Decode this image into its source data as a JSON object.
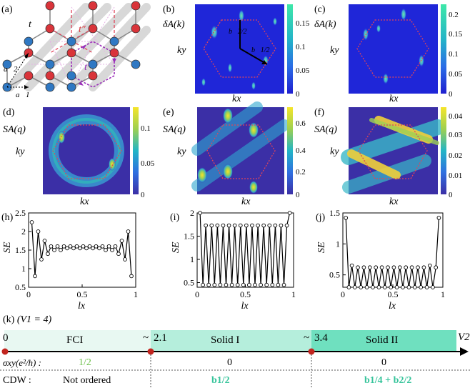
{
  "panels": {
    "a": {
      "label": "(a)",
      "t": "t",
      "t2": "t″",
      "t1": "t′",
      "a1": "a⃗1",
      "a2": "a⃗2"
    },
    "b": {
      "label": "(b)",
      "ylab": "δA(k)",
      "ky": "ky",
      "kx": "kx",
      "ticks": [
        "0.15",
        "0.1",
        "0.05",
        "0"
      ],
      "v1": "b⃗2/2",
      "v2": "b⃗1/2"
    },
    "c": {
      "label": "(c)",
      "ylab": "δA(k)",
      "ky": "ky",
      "kx": "kx",
      "ticks": [
        "0.2",
        "0.15",
        "0.1",
        "0.05",
        "0"
      ]
    },
    "d": {
      "label": "(d)",
      "ylab": "SA(q)",
      "ky": "ky",
      "kx": "kx",
      "ticks": [
        "0.1",
        "0.05",
        "0"
      ]
    },
    "e": {
      "label": "(e)",
      "ylab": "SA(q)",
      "ky": "ky",
      "kx": "kx",
      "ticks": [
        "0.6",
        "0.4",
        "0.2",
        "0"
      ]
    },
    "f": {
      "label": "(f)",
      "ylab": "SA(q)",
      "ky": "ky",
      "kx": "kx",
      "ticks": [
        "0.04",
        "0.03",
        "0.02",
        "0.01",
        "0"
      ]
    }
  },
  "chart_data": [
    {
      "type": "line",
      "panel": "(h)",
      "ylabel": "SE",
      "xlabel": "lx",
      "xlim": [
        0,
        1
      ],
      "ylim": [
        0.5,
        2.5
      ],
      "xticks": [
        "0",
        "0.5",
        "1"
      ],
      "yticks": [
        "0.5",
        "1",
        "1.5",
        "2",
        "2.5"
      ],
      "x": [
        0.03,
        0.06,
        0.09,
        0.12,
        0.15,
        0.18,
        0.21,
        0.24,
        0.27,
        0.3,
        0.33,
        0.36,
        0.39,
        0.42,
        0.45,
        0.48,
        0.51,
        0.54,
        0.57,
        0.6,
        0.63,
        0.66,
        0.69,
        0.72,
        0.75,
        0.78,
        0.81,
        0.84,
        0.87,
        0.9,
        0.93,
        0.96
      ],
      "y": [
        2.25,
        0.8,
        2.0,
        1.25,
        1.75,
        1.4,
        1.6,
        1.5,
        1.6,
        1.5,
        1.6,
        1.55,
        1.6,
        1.55,
        1.6,
        1.55,
        1.6,
        1.55,
        1.6,
        1.55,
        1.6,
        1.55,
        1.6,
        1.5,
        1.6,
        1.5,
        1.6,
        1.4,
        1.75,
        1.25,
        2.0,
        0.8
      ]
    },
    {
      "type": "line",
      "panel": "(i)",
      "ylabel": "SE",
      "xlabel": "lx",
      "xlim": [
        0,
        1
      ],
      "ylim": [
        0.4,
        2.0
      ],
      "xticks": [
        "0",
        "0.5",
        "1"
      ],
      "yticks": [
        "0.5",
        "1",
        "1.5",
        "2"
      ],
      "x": [
        0.03,
        0.06,
        0.09,
        0.12,
        0.15,
        0.18,
        0.21,
        0.24,
        0.27,
        0.3,
        0.33,
        0.36,
        0.39,
        0.42,
        0.45,
        0.48,
        0.51,
        0.54,
        0.57,
        0.6,
        0.63,
        0.66,
        0.69,
        0.72,
        0.75,
        0.78,
        0.81,
        0.84,
        0.87,
        0.9,
        0.93,
        0.96
      ],
      "y": [
        2.0,
        0.45,
        1.73,
        0.45,
        1.73,
        0.45,
        1.73,
        0.45,
        1.73,
        0.45,
        1.73,
        0.45,
        1.73,
        0.45,
        1.73,
        0.45,
        1.73,
        0.45,
        1.73,
        0.45,
        1.73,
        0.45,
        1.73,
        0.45,
        1.73,
        0.45,
        1.73,
        0.45,
        1.73,
        0.45,
        1.73,
        2.0
      ]
    },
    {
      "type": "line",
      "panel": "(j)",
      "ylabel": "SE",
      "xlabel": "lx",
      "xlim": [
        0,
        1
      ],
      "ylim": [
        0.3,
        1.5
      ],
      "xticks": [
        "0",
        "0.5",
        "1"
      ],
      "yticks": [
        "0.5",
        "1",
        "1.5"
      ],
      "x": [
        0.03,
        0.06,
        0.09,
        0.12,
        0.15,
        0.18,
        0.21,
        0.24,
        0.27,
        0.3,
        0.33,
        0.36,
        0.39,
        0.42,
        0.45,
        0.48,
        0.51,
        0.54,
        0.57,
        0.6,
        0.63,
        0.66,
        0.69,
        0.72,
        0.75,
        0.78,
        0.81,
        0.84,
        0.87,
        0.9,
        0.93,
        0.96
      ],
      "y": [
        1.42,
        0.3,
        0.65,
        0.3,
        0.62,
        0.3,
        0.62,
        0.3,
        0.62,
        0.3,
        0.62,
        0.3,
        0.62,
        0.3,
        0.62,
        0.3,
        0.62,
        0.3,
        0.62,
        0.3,
        0.62,
        0.3,
        0.62,
        0.3,
        0.62,
        0.3,
        0.62,
        0.3,
        0.65,
        0.3,
        0.62,
        1.42
      ]
    }
  ],
  "phase": {
    "label": "(k)",
    "v1": "(V1 = 4)",
    "v2": "V2",
    "ticks": [
      "0",
      "2.1",
      "3.4"
    ],
    "tilde": "~",
    "phases": [
      "FCI",
      "Solid I",
      "Solid II"
    ],
    "sigma_label": "σxy(e²/h) :",
    "sigma_values": [
      "1/2",
      "0",
      "0"
    ],
    "cdw_label": "CDW :",
    "cdw_values": [
      "Not ordered",
      "b1/2",
      "b1/4 + b2/2"
    ],
    "colors": {
      "fci": "#e8f8f2",
      "solid1": "#b5eedc",
      "solid2": "#6fe0bf",
      "accent": "#36c49b",
      "sigma_green": "#6cc04a"
    }
  }
}
